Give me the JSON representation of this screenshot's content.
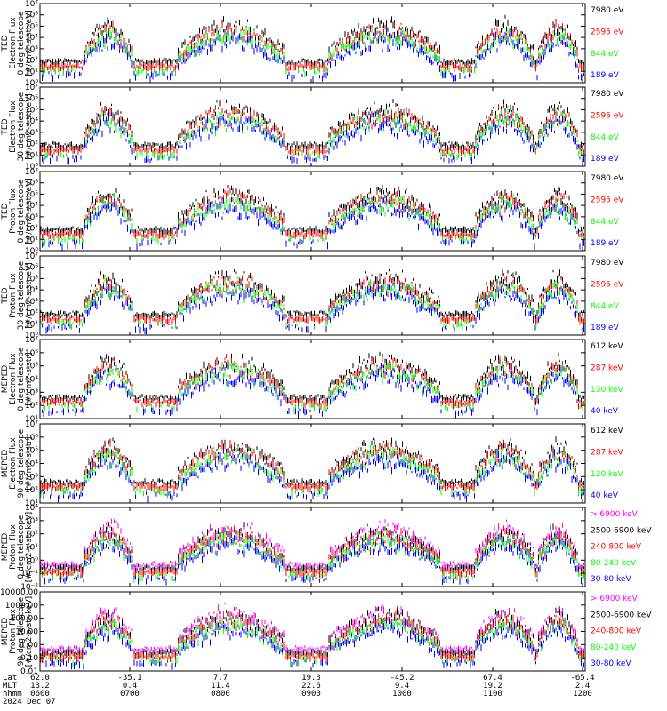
{
  "colors": {
    "blue": "#0000ff",
    "red": "#ff0000",
    "green": "#00ff00",
    "black": "#000000",
    "magenta": "#ff00ff"
  },
  "chart_data": [
    {
      "type": "line",
      "ylog": true,
      "ylim": [
        1,
        10000000
      ],
      "ylabel": [
        "TED",
        "Electron Flux",
        "0 deg telescope",
        "[#/cm2-s-str-eV]"
      ],
      "series": [
        {
          "name": "7980 eV",
          "color": "black"
        },
        {
          "name": "2595 eV",
          "color": "red"
        },
        {
          "name": "844 eV",
          "color": "green"
        },
        {
          "name": "189 eV",
          "color": "blue"
        }
      ]
    },
    {
      "type": "line",
      "ylog": true,
      "ylim": [
        1,
        10000000
      ],
      "ylabel": [
        "TED",
        "Electron Flux",
        "30 deg telescope",
        "[#/cm2-s-str-eV]"
      ],
      "series": [
        {
          "name": "7980 eV",
          "color": "black"
        },
        {
          "name": "2595 eV",
          "color": "red"
        },
        {
          "name": "844 eV",
          "color": "green"
        },
        {
          "name": "189 eV",
          "color": "blue"
        }
      ]
    },
    {
      "type": "line",
      "ylog": true,
      "ylim": [
        1,
        10000000
      ],
      "ylabel": [
        "TED",
        "Proton Flux",
        "0 deg telescope",
        "[#/cm2-s-str-eV]"
      ],
      "series": [
        {
          "name": "7980 eV",
          "color": "black"
        },
        {
          "name": "2595 eV",
          "color": "red"
        },
        {
          "name": "844 eV",
          "color": "green"
        },
        {
          "name": "189 eV",
          "color": "blue"
        }
      ]
    },
    {
      "type": "line",
      "ylog": true,
      "ylim": [
        1,
        10000000
      ],
      "ylabel": [
        "TED",
        "Proton Flux",
        "30 deg telescope",
        "[#/cm2-s-str-eV]"
      ],
      "series": [
        {
          "name": "7980 eV",
          "color": "black"
        },
        {
          "name": "2595 eV",
          "color": "red"
        },
        {
          "name": "844 eV",
          "color": "green"
        },
        {
          "name": "189 eV",
          "color": "blue"
        }
      ]
    },
    {
      "type": "line",
      "ylog": true,
      "ylim": [
        10,
        10000000
      ],
      "ylabel": [
        "MEPED",
        "Electron Flux",
        "0 deg telescope",
        "[#/cm2-s-str]"
      ],
      "series": [
        {
          "name": "612 keV",
          "color": "black"
        },
        {
          "name": "287 keV",
          "color": "red"
        },
        {
          "name": "130 keV",
          "color": "green"
        },
        {
          "name": "40 keV",
          "color": "blue"
        }
      ]
    },
    {
      "type": "line",
      "ylog": true,
      "ylim": [
        10,
        10000000
      ],
      "ylabel": [
        "MEPED",
        "Electron Flux",
        "90 deg telescope",
        "[#/cm2-s-str]"
      ],
      "series": [
        {
          "name": "612 keV",
          "color": "black"
        },
        {
          "name": "287 keV",
          "color": "red"
        },
        {
          "name": "130 keV",
          "color": "green"
        },
        {
          "name": "40 keV",
          "color": "blue"
        }
      ]
    },
    {
      "type": "line",
      "ylog": true,
      "ylim": [
        0.01,
        10000
      ],
      "ylabel": [
        "MEPED",
        "Proton Flux",
        "0 deg telescope",
        "[#/cm2-s-str-keV]"
      ],
      "series": [
        {
          "name": "> 6900 keV",
          "color": "magenta"
        },
        {
          "name": "2500-6900 keV",
          "color": "black"
        },
        {
          "name": "240-800 keV",
          "color": "red"
        },
        {
          "name": "80-240 keV",
          "color": "green"
        },
        {
          "name": "30-80 keV",
          "color": "blue"
        }
      ]
    },
    {
      "type": "line",
      "ylog": true,
      "ylim": [
        0.01,
        10000
      ],
      "yticks_fmt": "fixed2",
      "ylabel": [
        "MEPED",
        "Proton Flux",
        "90 deg telescope",
        "[#/cm2-s-str-keV]"
      ],
      "series": [
        {
          "name": "> 6900 keV",
          "color": "magenta"
        },
        {
          "name": "2500-6900 keV",
          "color": "black"
        },
        {
          "name": "240-800 keV",
          "color": "red"
        },
        {
          "name": "80-240 keV",
          "color": "green"
        },
        {
          "name": "30-80 keV",
          "color": "blue"
        }
      ]
    }
  ],
  "footer": {
    "labels": [
      "Lat",
      "MLT",
      "hhmm",
      "2024 Dec 07"
    ],
    "ticks": [
      {
        "lat": "62.0",
        "mlt": "13.2",
        "hhmm": "0600"
      },
      {
        "lat": "-35.1",
        "mlt": "0.4",
        "hhmm": "0700"
      },
      {
        "lat": "7.7",
        "mlt": "11.4",
        "hhmm": "0800"
      },
      {
        "lat": "19.3",
        "mlt": "22.6",
        "hhmm": "0900"
      },
      {
        "lat": "-45.2",
        "mlt": "9.4",
        "hhmm": "1000"
      },
      {
        "lat": "67.4",
        "mlt": "19.2",
        "hhmm": "1100"
      },
      {
        "lat": "-65.4",
        "mlt": "2.4",
        "hhmm": "1200"
      }
    ]
  }
}
